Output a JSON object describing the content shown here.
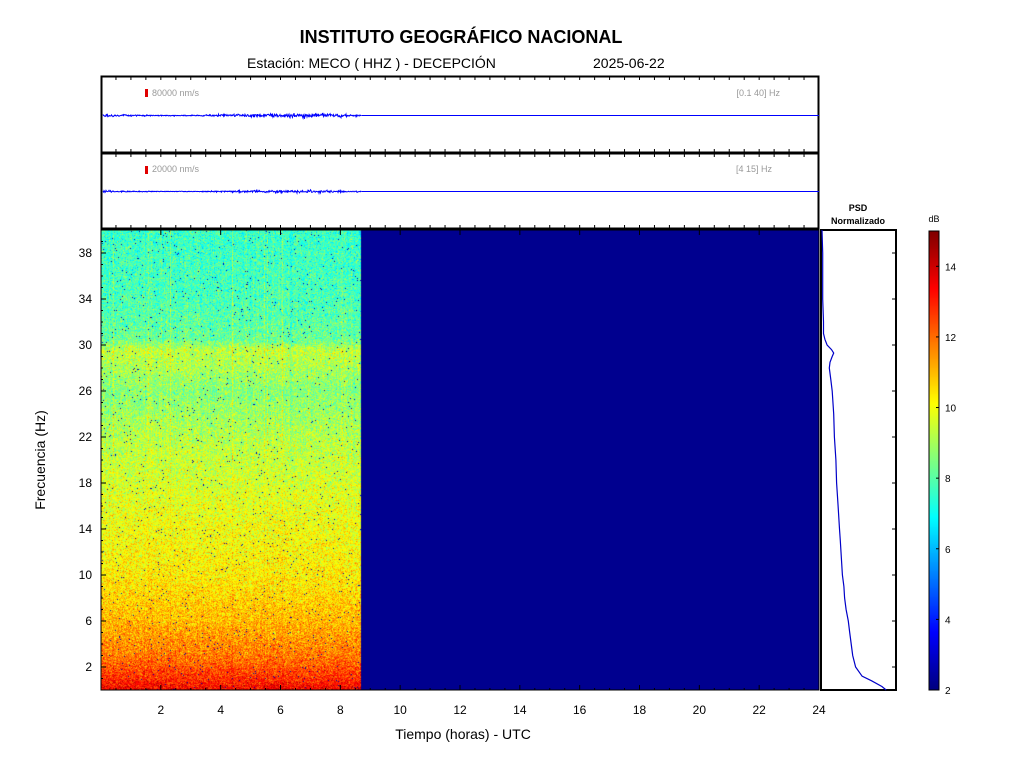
{
  "header": {
    "title": "INSTITUTO GEOGRÁFICO NACIONAL",
    "station": "Estación:  MECO ( HHZ ) - DECEPCIÓN",
    "date": "2025-06-22"
  },
  "chart_data": [
    {
      "type": "line",
      "panel": "trace-broadband",
      "scale_label": "80000 nm/s",
      "filter_label": "[0.1 40] Hz",
      "x_unit": "hours UTC",
      "xlim": [
        0,
        24
      ],
      "data_end_hour": 8.7,
      "color": "#0000ff",
      "scale_marker_color": "#e00000"
    },
    {
      "type": "line",
      "panel": "trace-filtered",
      "scale_label": "20000 nm/s",
      "filter_label": "[4 15] Hz",
      "x_unit": "hours UTC",
      "xlim": [
        0,
        24
      ],
      "data_end_hour": 8.7,
      "color": "#0000ff",
      "scale_marker_color": "#e00000"
    },
    {
      "type": "heatmap",
      "panel": "spectrogram",
      "xlabel": "Tiempo (horas) - UTC",
      "ylabel": "Frecuencia  (Hz)",
      "xlim": [
        0,
        24
      ],
      "ylim": [
        0,
        40
      ],
      "x_ticks": [
        2,
        4,
        6,
        8,
        10,
        12,
        14,
        16,
        18,
        20,
        22,
        24
      ],
      "y_ticks": [
        2,
        6,
        10,
        14,
        18,
        22,
        26,
        30,
        34,
        38
      ],
      "data_end_hour": 8.7,
      "colormap": "jet",
      "no_data_color": "#00008f",
      "approx_level_db_by_frequency": {
        "frequency_hz": [
          0,
          1,
          3,
          6,
          10,
          14,
          18,
          22,
          26,
          29.5,
          30.5,
          34,
          40
        ],
        "level_db": [
          13.5,
          12.8,
          11.8,
          11.0,
          10.3,
          10.0,
          9.6,
          9.2,
          8.6,
          9.4,
          8.2,
          7.8,
          7.6
        ]
      }
    },
    {
      "type": "line",
      "panel": "psd",
      "title": "PSD",
      "subtitle": "Normalizado",
      "ylim": [
        0,
        40
      ],
      "color": "#0000c8",
      "frequency_hz": [
        0,
        0.3,
        0.8,
        1.2,
        2,
        3,
        4,
        5,
        6,
        7,
        8,
        9,
        10,
        11,
        12,
        13,
        14,
        16,
        18,
        20,
        22,
        24,
        26,
        27,
        28,
        28.5,
        29,
        29.3,
        29.6,
        30,
        30.5,
        31,
        32,
        34,
        36,
        38,
        40
      ],
      "normalized_psd": [
        0.88,
        0.82,
        0.68,
        0.55,
        0.46,
        0.42,
        0.4,
        0.38,
        0.36,
        0.33,
        0.31,
        0.3,
        0.28,
        0.27,
        0.26,
        0.25,
        0.24,
        0.22,
        0.2,
        0.19,
        0.17,
        0.16,
        0.14,
        0.12,
        0.1,
        0.11,
        0.14,
        0.16,
        0.13,
        0.07,
        0.04,
        0.02,
        0.02,
        0.01,
        0.01,
        0.01,
        0.0
      ]
    },
    {
      "type": "heatmap",
      "panel": "colorbar",
      "label": "dB",
      "ylim": [
        2,
        15
      ],
      "ticks": [
        2,
        4,
        6,
        8,
        10,
        12,
        14
      ],
      "colormap": "jet"
    }
  ]
}
